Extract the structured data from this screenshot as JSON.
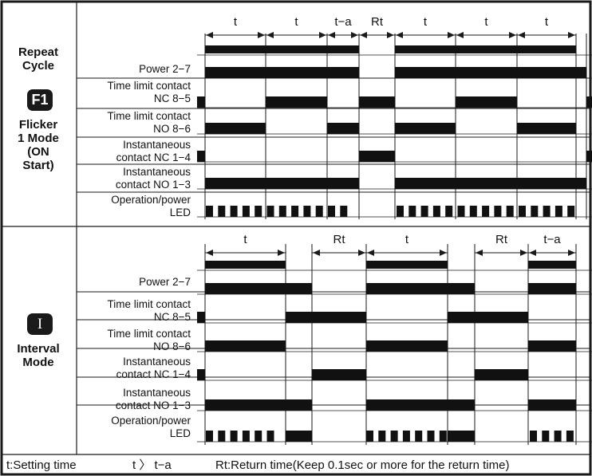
{
  "panels": [
    {
      "mode_title_lines": [
        "Repeat",
        "Cycle"
      ],
      "mode_badge": "F1",
      "mode_name_lines": [
        "Flicker",
        "1 Mode",
        "(ON",
        "Start)"
      ],
      "interval_labels": [
        "t",
        "t",
        "t−a",
        "Rt",
        "t",
        "t",
        "t"
      ],
      "rows": [
        {
          "label_lines": [
            "Power  2−7"
          ]
        },
        {
          "label_lines": [
            "Time limit contact",
            "NC 8−5"
          ]
        },
        {
          "label_lines": [
            "Time limit contact",
            "NO 8−6"
          ]
        },
        {
          "label_lines": [
            "Instantaneous",
            "contact  NC 1−4"
          ]
        },
        {
          "label_lines": [
            "Instantaneous",
            "contact  NO 1−3"
          ]
        },
        {
          "label_lines": [
            "Operation/power",
            "LED"
          ]
        }
      ]
    },
    {
      "mode_title_lines": [],
      "mode_badge": "I",
      "mode_name_lines": [
        "Interval",
        "Mode"
      ],
      "interval_labels": [
        "t",
        "Rt",
        "t",
        "Rt",
        "t−a"
      ],
      "rows": [
        {
          "label_lines": [
            "Power  2−7"
          ]
        },
        {
          "label_lines": [
            "Time limit contact",
            "NC 8−5"
          ]
        },
        {
          "label_lines": [
            "Time limit contact",
            "NO 8−6"
          ]
        },
        {
          "label_lines": [
            "Instantaneous",
            "contact  NC 1−4"
          ]
        },
        {
          "label_lines": [
            "Instantaneous",
            "contact  NO 1−3"
          ]
        },
        {
          "label_lines": [
            "Operation/power",
            "LED"
          ]
        }
      ]
    }
  ],
  "footer": {
    "setting_time": "t:Setting time",
    "relation": "t 〉 t−a",
    "return_time": "Rt:Return time(Keep 0.1sec or more for the return time)"
  },
  "colors": {
    "line": "#1a1a1a",
    "bar": "#111111",
    "badge": "#1a1a1a"
  }
}
